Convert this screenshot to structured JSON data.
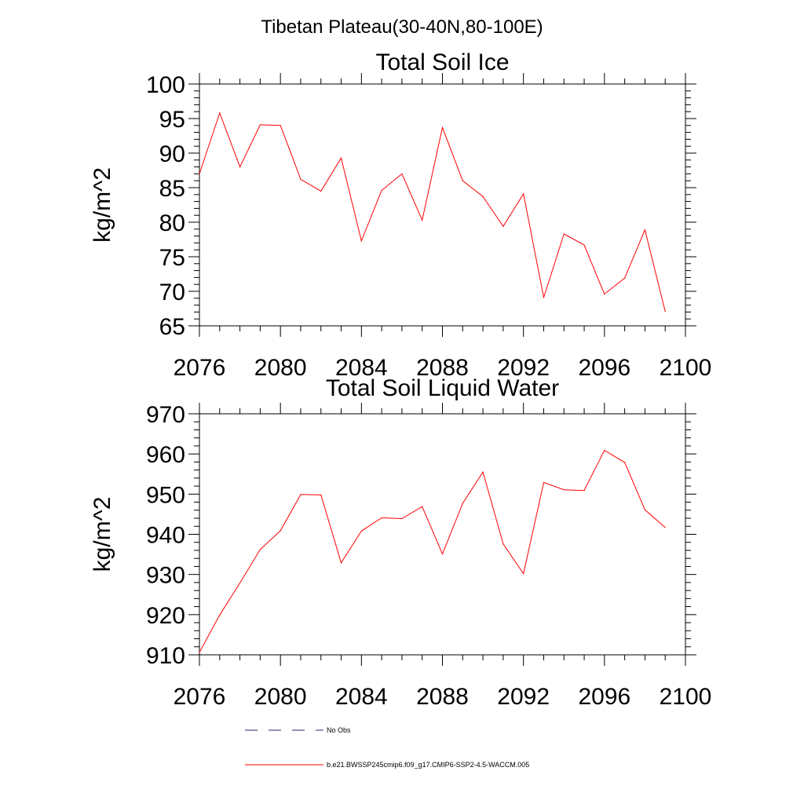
{
  "suptitle": "Tibetan Plateau(30-40N,80-100E)",
  "legend": {
    "obs_label": "No Obs",
    "obs_color": "#2a2a6a",
    "model_label": "b.e21.BWSSP245cmip6.f09_g17.CMIP6-SSP2-4.5-WACCM.005",
    "model_color": "#ff0000"
  },
  "chart_data": [
    {
      "type": "line",
      "title": "Total Soil Ice",
      "ylabel": "kg/m^2",
      "xlabel": "",
      "xlim": [
        2076,
        2100
      ],
      "ylim": [
        65,
        100
      ],
      "xticks": [
        2076,
        2080,
        2084,
        2088,
        2092,
        2096,
        2100
      ],
      "yticks": [
        65,
        70,
        75,
        80,
        85,
        90,
        95,
        100
      ],
      "x": [
        2076,
        2077,
        2078,
        2079,
        2080,
        2081,
        2082,
        2083,
        2084,
        2085,
        2086,
        2087,
        2088,
        2089,
        2090,
        2091,
        2092,
        2093,
        2094,
        2095,
        2096,
        2097,
        2098,
        2099
      ],
      "series": [
        {
          "name": "b.e21.BWSSP245cmip6.f09_g17.CMIP6-SSP2-4.5-WACCM.005",
          "color": "#ff0000",
          "values": [
            87.0,
            95.8,
            88.0,
            94.1,
            94.0,
            86.2,
            84.5,
            89.3,
            77.3,
            84.6,
            87.0,
            80.3,
            93.7,
            86.0,
            83.7,
            79.4,
            84.1,
            69.1,
            78.3,
            76.7,
            69.6,
            71.9,
            78.9,
            67.1
          ]
        }
      ]
    },
    {
      "type": "line",
      "title": "Total Soil Liquid Water",
      "ylabel": "kg/m^2",
      "xlabel": "",
      "xlim": [
        2076,
        2100
      ],
      "ylim": [
        910,
        970
      ],
      "xticks": [
        2076,
        2080,
        2084,
        2088,
        2092,
        2096,
        2100
      ],
      "yticks": [
        910,
        920,
        930,
        940,
        950,
        960,
        970
      ],
      "x": [
        2076,
        2077,
        2078,
        2079,
        2080,
        2081,
        2082,
        2083,
        2084,
        2085,
        2086,
        2087,
        2088,
        2089,
        2090,
        2091,
        2092,
        2093,
        2094,
        2095,
        2096,
        2097,
        2098,
        2099
      ],
      "series": [
        {
          "name": "b.e21.BWSSP245cmip6.f09_g17.CMIP6-SSP2-4.5-WACCM.005",
          "color": "#ff0000",
          "values": [
            910.6,
            919.9,
            927.9,
            936.2,
            940.9,
            949.9,
            949.8,
            932.9,
            940.8,
            944.1,
            943.9,
            946.9,
            935.1,
            947.7,
            955.5,
            937.6,
            930.2,
            952.9,
            951.1,
            950.9,
            960.9,
            957.9,
            946.1,
            941.7
          ]
        }
      ]
    }
  ]
}
